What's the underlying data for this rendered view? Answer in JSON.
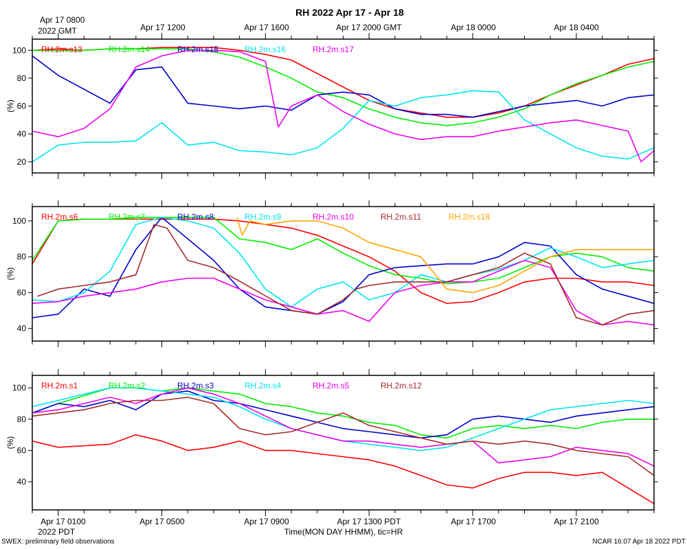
{
  "title": "RH 2022 Apr 17 - Apr 18",
  "top_axis": {
    "labels": [
      "Apr 17 0800",
      "Apr 17 1200",
      "Apr 17 1600",
      "Apr 17 2000 GMT",
      "Apr 18 0000",
      "Apr 18 0400"
    ],
    "sublabel": "2022 GMT"
  },
  "bottom_axis": {
    "labels": [
      "Apr 17 0100",
      "Apr 17 0500",
      "Apr 17 0900",
      "Apr 17 1300 PDT",
      "Apr 17 1700",
      "Apr 17 2100"
    ],
    "sublabel": "2022 PDT",
    "xlabel": "Time(MON DAY HHMM), tic=HR"
  },
  "footer": {
    "left": "SWEX: preliminary field observations",
    "right": "NCAR 16:07 Apr 18 2022 PDT"
  },
  "chart_data": [
    {
      "type": "line",
      "ylabel": "(%)",
      "ylim": [
        12,
        108
      ],
      "yticks": [
        20,
        40,
        60,
        80,
        100
      ],
      "x_unit": "hours since Apr 17 0000 PDT",
      "xlim": [
        0,
        24
      ],
      "series": [
        {
          "name": "RH.2m.s13",
          "color": "#ff0000",
          "x": [
            0,
            1,
            2,
            3,
            4,
            5,
            6,
            7,
            8,
            9,
            10,
            13,
            14,
            15,
            16,
            17,
            18,
            19,
            20,
            21,
            22,
            23,
            24
          ],
          "y": [
            100,
            101,
            100,
            101,
            101,
            102,
            102,
            102,
            100,
            97,
            93,
            64,
            58,
            55,
            52,
            52,
            55,
            60,
            68,
            75,
            82,
            90,
            94
          ]
        },
        {
          "name": "RH.2m.s14",
          "color": "#00ee00",
          "x": [
            0,
            1,
            2,
            3,
            4,
            5,
            6,
            7,
            8,
            9,
            10,
            11,
            12,
            13,
            14,
            15,
            16,
            17,
            18,
            19,
            20,
            21,
            22,
            23,
            24
          ],
          "y": [
            100,
            100,
            100,
            101,
            101,
            101,
            101,
            99,
            95,
            88,
            80,
            70,
            66,
            58,
            52,
            48,
            46,
            48,
            52,
            58,
            68,
            76,
            82,
            88,
            92
          ]
        },
        {
          "name": "RH.2m.s15",
          "color": "#0000cc",
          "x": [
            0,
            1,
            2,
            3,
            4,
            5,
            6,
            7,
            8,
            9,
            10,
            11,
            12,
            13,
            14,
            15,
            16,
            17,
            18,
            19,
            20,
            21,
            22,
            23,
            24
          ],
          "y": [
            96,
            82,
            72,
            62,
            86,
            88,
            62,
            60,
            58,
            60,
            57,
            68,
            70,
            68,
            58,
            54,
            54,
            52,
            56,
            60,
            62,
            64,
            60,
            66,
            68
          ]
        },
        {
          "name": "RH.2m.s16",
          "color": "#00e5ee",
          "x": [
            0,
            1,
            2,
            3,
            4,
            5,
            6,
            7,
            8,
            9,
            10,
            11,
            12,
            13,
            14,
            15,
            16,
            17,
            18,
            19,
            20,
            21,
            22,
            23,
            24
          ],
          "y": [
            20,
            32,
            34,
            34,
            35,
            48,
            32,
            34,
            28,
            27,
            25,
            30,
            44,
            64,
            60,
            66,
            68,
            71,
            70,
            50,
            40,
            30,
            24,
            22,
            30
          ]
        },
        {
          "name": "RH.2m.s17",
          "color": "#ee00ee",
          "x": [
            0,
            1,
            2,
            3,
            4,
            5,
            6,
            7,
            8,
            9,
            9.5,
            10,
            11,
            12,
            13,
            14,
            15,
            16,
            17,
            18,
            19,
            20,
            21,
            22,
            23,
            23.5,
            24
          ],
          "y": [
            42,
            38,
            44,
            58,
            88,
            96,
            100,
            100,
            99,
            92,
            45,
            60,
            68,
            56,
            47,
            40,
            36,
            38,
            38,
            42,
            45,
            48,
            50,
            46,
            42,
            20,
            28
          ]
        }
      ]
    },
    {
      "type": "line",
      "ylabel": "(%)",
      "ylim": [
        33,
        108
      ],
      "yticks": [
        40,
        60,
        80,
        100
      ],
      "x_unit": "hours since Apr 17 0000 PDT",
      "xlim": [
        0,
        24
      ],
      "series": [
        {
          "name": "RH.2m.s6",
          "color": "#ff0000",
          "x": [
            0,
            1,
            2,
            3,
            4,
            5,
            6,
            7,
            8,
            9,
            10,
            11,
            12,
            13,
            14,
            15,
            16,
            17,
            18,
            19,
            20,
            21,
            22,
            23,
            24
          ],
          "y": [
            76,
            100,
            101,
            101,
            101,
            101,
            101,
            101,
            100,
            98,
            96,
            92,
            86,
            80,
            72,
            60,
            54,
            55,
            60,
            66,
            68,
            68,
            66,
            66,
            64
          ]
        },
        {
          "name": "RH.2m.s7",
          "color": "#00ee00",
          "x": [
            0,
            1,
            2,
            3,
            4,
            5,
            6,
            7,
            8,
            9,
            10,
            11,
            12,
            13,
            14,
            15,
            16,
            17,
            18,
            19,
            20,
            21,
            22,
            23,
            24
          ],
          "y": [
            78,
            100,
            101,
            101,
            102,
            102,
            102,
            102,
            90,
            88,
            84,
            90,
            82,
            75,
            70,
            68,
            65,
            66,
            68,
            74,
            80,
            82,
            80,
            74,
            72
          ]
        },
        {
          "name": "RH.2m.s8",
          "color": "#0000cc",
          "x": [
            0,
            1,
            2,
            3,
            4,
            5,
            6,
            7,
            8,
            9,
            10,
            11,
            12,
            13,
            14,
            15,
            16,
            17,
            18,
            19,
            20,
            21,
            22,
            23,
            24
          ],
          "y": [
            46,
            48,
            62,
            58,
            84,
            102,
            90,
            78,
            62,
            52,
            50,
            48,
            55,
            70,
            74,
            75,
            76,
            76,
            80,
            88,
            86,
            70,
            62,
            58,
            54
          ]
        },
        {
          "name": "RH.2m.s9",
          "color": "#00e5ee",
          "x": [
            0,
            1,
            2,
            3,
            4,
            5,
            6,
            7,
            8,
            9,
            10,
            11,
            12,
            13,
            14,
            15,
            16,
            17,
            18,
            19,
            20,
            21,
            22,
            23,
            24
          ],
          "y": [
            56,
            55,
            60,
            72,
            98,
            102,
            100,
            96,
            82,
            62,
            52,
            62,
            66,
            56,
            60,
            70,
            66,
            70,
            73,
            78,
            85,
            80,
            74,
            76,
            78
          ]
        },
        {
          "name": "RH.2m.s10",
          "color": "#ee00ee",
          "x": [
            0,
            1,
            2,
            3,
            4,
            5,
            6,
            7,
            8,
            9,
            10,
            11,
            12,
            13,
            14,
            15,
            16,
            17,
            18,
            19,
            20,
            21,
            22,
            23,
            24
          ],
          "y": [
            54,
            55,
            58,
            60,
            62,
            66,
            68,
            68,
            62,
            56,
            52,
            48,
            50,
            44,
            60,
            64,
            66,
            66,
            72,
            78,
            74,
            50,
            42,
            44,
            42
          ]
        },
        {
          "name": "RH.2m.s11",
          "color": "#a52a2a",
          "x": [
            0.2,
            1,
            2,
            3,
            4,
            4.7,
            5.2,
            6,
            7,
            7.8,
            10,
            11,
            12,
            12.5,
            13,
            14,
            15,
            16,
            17,
            18,
            19,
            20,
            21,
            22,
            23,
            24
          ],
          "y": [
            58,
            62,
            64,
            66,
            70,
            98,
            96,
            78,
            74,
            68,
            50,
            48,
            56,
            62,
            64,
            66,
            66,
            66,
            70,
            74,
            82,
            76,
            46,
            42,
            48,
            50
          ]
        },
        {
          "name": "RH.2m.s18",
          "color": "#ffa500",
          "x": [
            7.9,
            8.1,
            8.4,
            9,
            10,
            11,
            12,
            13,
            14,
            15,
            16,
            17,
            18,
            19,
            20,
            21,
            22,
            23,
            24
          ],
          "y": [
            102,
            92,
            100,
            98,
            100,
            100,
            96,
            88,
            84,
            80,
            62,
            60,
            64,
            72,
            80,
            84,
            84,
            84,
            84
          ]
        }
      ]
    },
    {
      "type": "line",
      "ylabel": "(%)",
      "ylim": [
        22,
        108
      ],
      "yticks": [
        40,
        60,
        80,
        100
      ],
      "x_unit": "hours since Apr 17 0000 PDT",
      "xlim": [
        0,
        24
      ],
      "series": [
        {
          "name": "RH.2m.s1",
          "color": "#ff0000",
          "x": [
            0,
            1,
            2,
            3,
            4,
            5,
            6,
            7,
            8,
            9,
            10,
            11,
            12,
            13,
            14,
            15,
            16,
            17,
            18,
            19,
            20,
            21,
            22,
            23,
            24
          ],
          "y": [
            66,
            62,
            63,
            64,
            70,
            66,
            60,
            62,
            66,
            60,
            60,
            58,
            56,
            54,
            50,
            44,
            38,
            36,
            42,
            46,
            46,
            44,
            46,
            36,
            26
          ]
        },
        {
          "name": "RH.2m.s2",
          "color": "#00ee00",
          "x": [
            0,
            1,
            2,
            3,
            4,
            5,
            6,
            7,
            8,
            9,
            10,
            11,
            12,
            13,
            14,
            15,
            16,
            17,
            18,
            19,
            20,
            21,
            22,
            23,
            24
          ],
          "y": [
            84,
            90,
            95,
            100,
            100,
            98,
            100,
            98,
            96,
            90,
            88,
            84,
            82,
            78,
            76,
            70,
            68,
            74,
            76,
            74,
            76,
            74,
            78,
            80,
            80
          ]
        },
        {
          "name": "RH.2m.s3",
          "color": "#0000cc",
          "x": [
            0,
            1,
            2,
            3,
            4,
            5,
            6,
            7,
            8,
            9,
            10,
            11,
            12,
            13,
            14,
            15,
            16,
            17,
            18,
            19,
            20,
            21,
            22,
            23,
            24
          ],
          "y": [
            84,
            90,
            88,
            92,
            86,
            96,
            98,
            92,
            90,
            86,
            82,
            78,
            74,
            72,
            70,
            68,
            70,
            80,
            82,
            80,
            78,
            82,
            84,
            86,
            88
          ]
        },
        {
          "name": "RH.2m.s4",
          "color": "#00e5ee",
          "x": [
            0,
            1,
            2,
            3,
            4,
            5,
            6,
            7,
            8,
            9,
            10,
            11,
            12,
            13,
            14,
            15,
            16,
            17,
            18,
            19,
            20,
            21,
            22,
            23,
            24
          ],
          "y": [
            88,
            92,
            96,
            100,
            100,
            98,
            96,
            94,
            88,
            80,
            74,
            70,
            66,
            64,
            62,
            60,
            62,
            68,
            74,
            80,
            86,
            88,
            90,
            92,
            90
          ]
        },
        {
          "name": "RH.2m.s5",
          "color": "#ee00ee",
          "x": [
            0,
            1,
            2,
            3,
            4,
            5,
            6,
            7,
            8,
            9,
            10,
            11,
            12,
            13,
            14,
            15,
            16,
            17,
            18,
            19,
            20,
            21,
            22,
            23,
            24
          ],
          "y": [
            84,
            86,
            90,
            94,
            90,
            96,
            100,
            96,
            90,
            82,
            74,
            70,
            66,
            66,
            64,
            62,
            64,
            66,
            52,
            54,
            56,
            62,
            60,
            58,
            50
          ]
        },
        {
          "name": "RH.2m.s12",
          "color": "#a52a2a",
          "x": [
            0,
            1,
            2,
            3,
            4,
            5,
            6,
            7,
            8,
            9,
            10,
            11,
            12,
            13,
            14,
            15,
            16,
            17,
            18,
            19,
            20,
            21,
            22,
            23,
            24
          ],
          "y": [
            82,
            84,
            86,
            90,
            92,
            92,
            94,
            90,
            74,
            70,
            72,
            78,
            84,
            76,
            72,
            68,
            64,
            66,
            64,
            66,
            64,
            60,
            58,
            56,
            44
          ]
        }
      ]
    }
  ]
}
